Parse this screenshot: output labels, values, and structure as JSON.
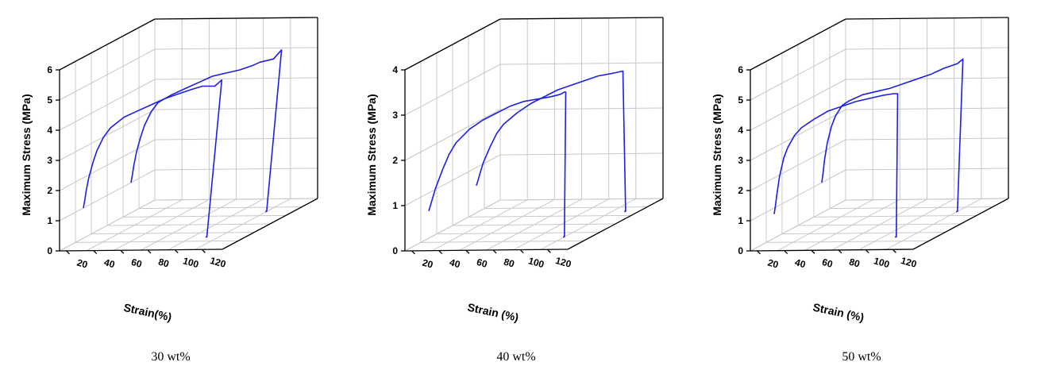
{
  "chart_data": [
    {
      "type": "line",
      "caption": "30 wt%",
      "zlabel": "Maximum Stress (MPa)",
      "xlabel": "Strain(%)",
      "ylabel": "",
      "zlim": [
        0,
        6
      ],
      "zticks": [
        "0",
        "1",
        "2",
        "3",
        "4",
        "5",
        "6"
      ],
      "xticks": [
        "20",
        "40",
        "60",
        "80",
        "100",
        "120"
      ],
      "grid": true,
      "series": [
        {
          "depth": 0.25,
          "x": [
            0,
            1,
            2,
            4,
            7,
            10,
            15,
            20,
            30,
            40,
            50,
            60,
            70,
            80,
            88,
            92,
            97,
            102,
            91,
            90
          ],
          "y": [
            1.0,
            1.25,
            1.55,
            2.0,
            2.5,
            2.9,
            3.35,
            3.65,
            4.0,
            4.2,
            4.4,
            4.6,
            4.75,
            4.9,
            5.0,
            5.0,
            5.0,
            5.2,
            0.0,
            0.0
          ]
        },
        {
          "depth": 0.75,
          "x": [
            0,
            1,
            2,
            4,
            7,
            10,
            15,
            20,
            30,
            40,
            50,
            60,
            70,
            80,
            90,
            95,
            100,
            105,
            111,
            100,
            99
          ],
          "y": [
            1.0,
            1.25,
            1.55,
            2.0,
            2.5,
            2.9,
            3.35,
            3.65,
            3.9,
            4.1,
            4.3,
            4.5,
            4.6,
            4.7,
            4.85,
            4.95,
            5.0,
            5.05,
            5.35,
            0.0,
            0.0
          ]
        }
      ]
    },
    {
      "type": "line",
      "caption": "40 wt%",
      "zlabel": "Maximum Stress (MPa)",
      "xlabel": "Strain (%)",
      "ylabel": "",
      "zlim": [
        0,
        4
      ],
      "zticks": [
        "0",
        "1",
        "2",
        "3",
        "4"
      ],
      "xticks": [
        "20",
        "40",
        "60",
        "80",
        "100",
        "120"
      ],
      "grid": true,
      "series": [
        {
          "depth": 0.25,
          "x": [
            0,
            2,
            5,
            10,
            15,
            20,
            30,
            40,
            50,
            60,
            70,
            80,
            90,
            97,
            100,
            101,
            100,
            99
          ],
          "y": [
            0.6,
            0.8,
            1.1,
            1.5,
            1.85,
            2.1,
            2.4,
            2.6,
            2.75,
            2.9,
            3.0,
            3.05,
            3.1,
            3.15,
            3.2,
            3.2,
            0.0,
            0.0
          ]
        },
        {
          "depth": 0.75,
          "x": [
            0,
            2,
            5,
            10,
            15,
            20,
            30,
            40,
            50,
            60,
            70,
            80,
            90,
            100,
            108,
            110,
            109
          ],
          "y": [
            0.6,
            0.8,
            1.1,
            1.45,
            1.75,
            1.95,
            2.2,
            2.4,
            2.55,
            2.7,
            2.8,
            2.9,
            3.0,
            3.05,
            3.1,
            0.0,
            0.0
          ]
        }
      ]
    },
    {
      "type": "line",
      "caption": "50 wt%",
      "zlabel": "Maximum Stress (MPa)",
      "xlabel": "Strain (%)",
      "ylabel": "",
      "zlim": [
        0,
        6
      ],
      "zticks": [
        "0",
        "1",
        "2",
        "3",
        "4",
        "5",
        "6"
      ],
      "xticks": [
        "20",
        "40",
        "60",
        "80",
        "100",
        "120"
      ],
      "grid": true,
      "series": [
        {
          "depth": 0.25,
          "x": [
            0,
            1,
            2,
            4,
            7,
            10,
            15,
            20,
            30,
            40,
            50,
            60,
            70,
            80,
            88,
            91,
            90,
            89
          ],
          "y": [
            0.8,
            1.1,
            1.45,
            2.05,
            2.65,
            3.0,
            3.4,
            3.65,
            3.95,
            4.2,
            4.35,
            4.5,
            4.6,
            4.7,
            4.75,
            4.75,
            0.0,
            0.0
          ]
        },
        {
          "depth": 0.75,
          "x": [
            0,
            1,
            2,
            4,
            7,
            10,
            15,
            20,
            30,
            40,
            50,
            60,
            70,
            80,
            90,
            100,
            104,
            100,
            99
          ],
          "y": [
            1.0,
            1.35,
            1.75,
            2.3,
            2.85,
            3.2,
            3.55,
            3.7,
            3.9,
            4.0,
            4.1,
            4.25,
            4.4,
            4.55,
            4.75,
            4.9,
            5.05,
            0.0,
            0.0
          ]
        }
      ]
    }
  ]
}
